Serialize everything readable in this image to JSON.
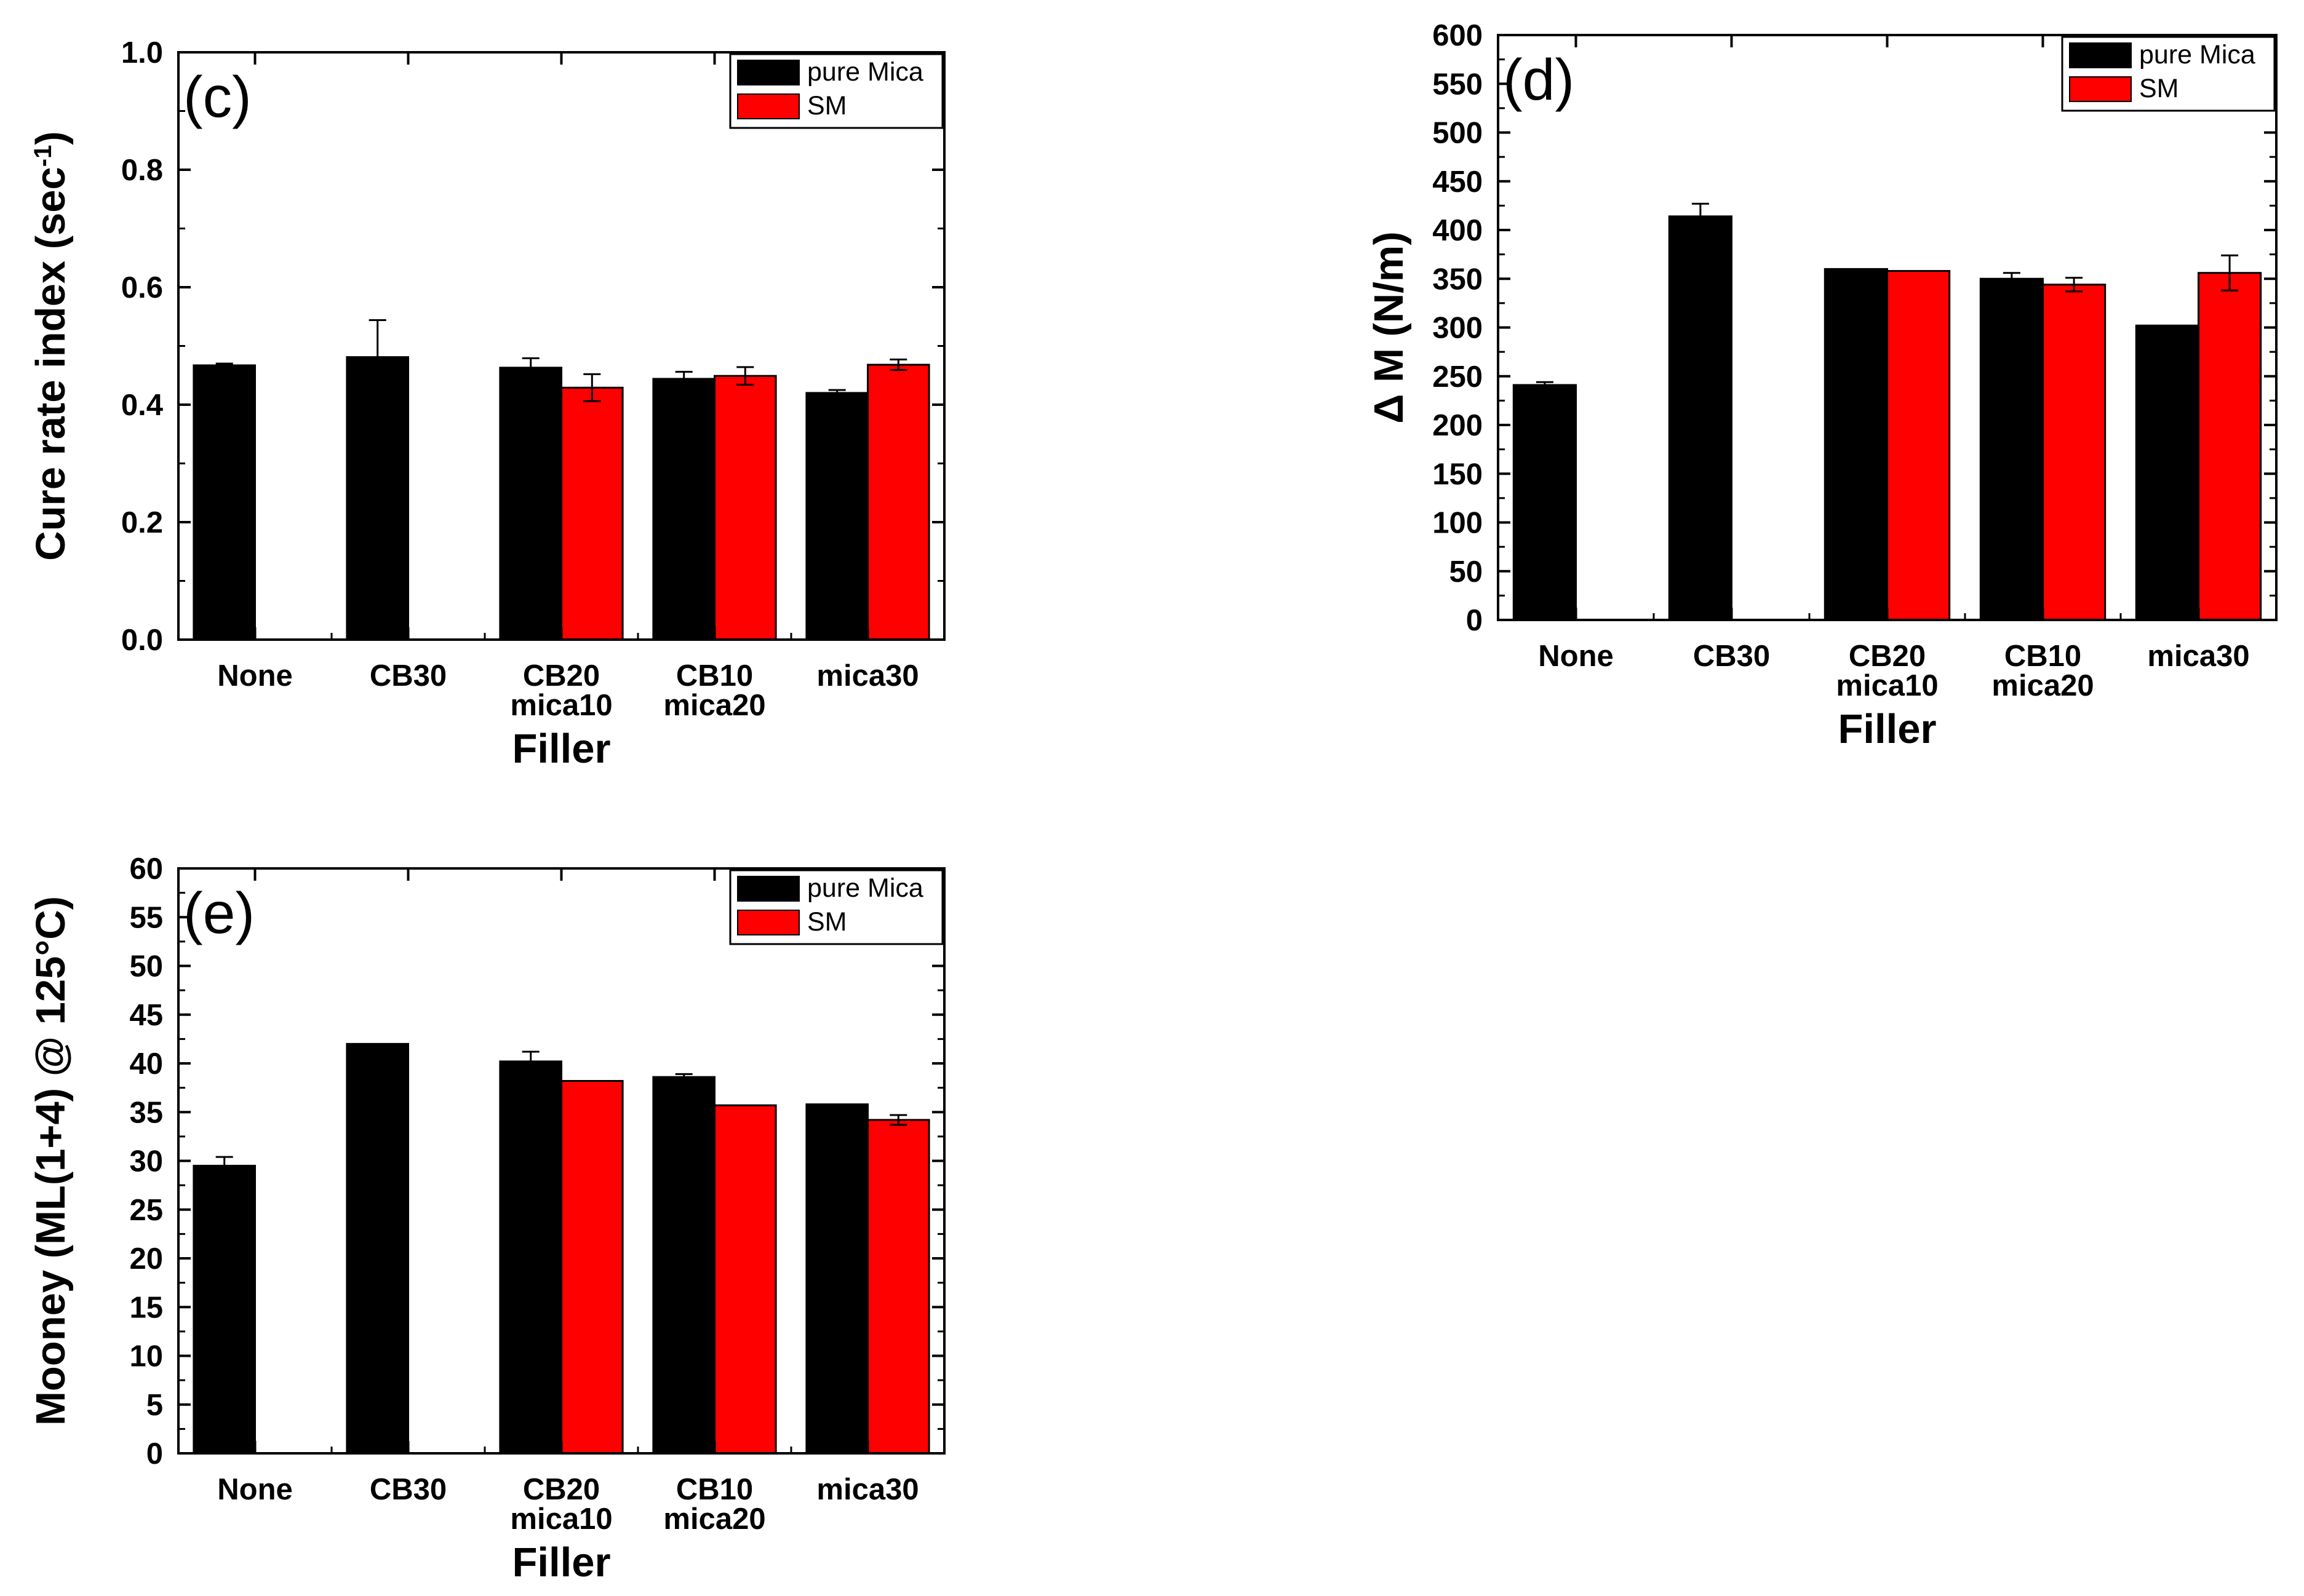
{
  "chart_data": [
    {
      "id": "c",
      "type": "bar",
      "panel_label": "(c)",
      "title": "",
      "xlabel": "Filler",
      "ylabel": "Cure rate index (sec",
      "ylabel_superscript": "-1",
      "ylabel_suffix": ")",
      "categories": [
        [
          "None"
        ],
        [
          "CB30"
        ],
        [
          "CB20",
          "mica10"
        ],
        [
          "CB10",
          "mica20"
        ],
        [
          "mica30"
        ]
      ],
      "ylim": [
        0,
        1.0
      ],
      "yticks": [
        "0.0",
        "0.2",
        "0.4",
        "0.6",
        "0.8",
        "1.0"
      ],
      "legend_position": "top-right",
      "series": [
        {
          "name": "pure Mica",
          "color": "#000000",
          "values": [
            0.467,
            0.481,
            0.463,
            0.444,
            0.42
          ],
          "errors": [
            0.003,
            0.063,
            0.016,
            0.012,
            0.005
          ]
        },
        {
          "name": "SM",
          "color": "#ff0000",
          "values": [
            null,
            null,
            0.429,
            0.449,
            0.468
          ],
          "errors": [
            null,
            null,
            0.023,
            0.015,
            0.009
          ]
        }
      ]
    },
    {
      "id": "d",
      "type": "bar",
      "panel_label": "(d)",
      "title": "",
      "xlabel": "Filler",
      "ylabel": "Δ M (N/m)",
      "categories": [
        [
          "None"
        ],
        [
          "CB30"
        ],
        [
          "CB20",
          "mica10"
        ],
        [
          "CB10",
          "mica20"
        ],
        [
          "mica30"
        ]
      ],
      "ylim": [
        0,
        600
      ],
      "yticks": [
        "0",
        "50",
        "100",
        "150",
        "200",
        "250",
        "300",
        "350",
        "400",
        "450",
        "500",
        "550",
        "600"
      ],
      "legend_position": "top-right",
      "series": [
        {
          "name": "pure Mica",
          "color": "#000000",
          "values": [
            241,
            414,
            360,
            350,
            302
          ],
          "errors": [
            3,
            13,
            0,
            6,
            0
          ]
        },
        {
          "name": "SM",
          "color": "#ff0000",
          "values": [
            null,
            null,
            358,
            344,
            356
          ],
          "errors": [
            null,
            null,
            0,
            7,
            18
          ]
        }
      ]
    },
    {
      "id": "e",
      "type": "bar",
      "panel_label": "(e)",
      "title": "",
      "xlabel": "Filler",
      "ylabel": "Mooney (ML(1+4) @ 125°C)",
      "categories": [
        [
          "None"
        ],
        [
          "CB30"
        ],
        [
          "CB20",
          "mica10"
        ],
        [
          "CB10",
          "mica20"
        ],
        [
          "mica30"
        ]
      ],
      "ylim": [
        0,
        60
      ],
      "yticks": [
        "0",
        "5",
        "10",
        "15",
        "20",
        "25",
        "30",
        "35",
        "40",
        "45",
        "50",
        "55",
        "60"
      ],
      "legend_position": "top-right",
      "series": [
        {
          "name": "pure Mica",
          "color": "#000000",
          "values": [
            29.5,
            42.0,
            40.2,
            38.6,
            35.8
          ],
          "errors": [
            0.9,
            0,
            1.0,
            0.3,
            0
          ]
        },
        {
          "name": "SM",
          "color": "#ff0000",
          "values": [
            null,
            null,
            38.2,
            35.7,
            34.2
          ],
          "errors": [
            null,
            null,
            0,
            0,
            0.5
          ]
        }
      ]
    }
  ]
}
